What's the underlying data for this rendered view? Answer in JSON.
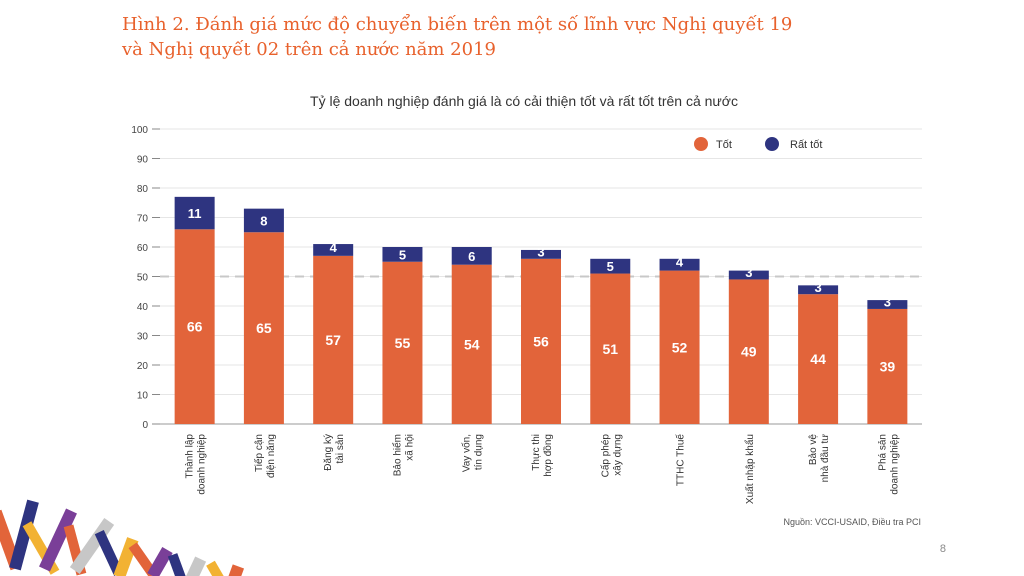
{
  "figure": {
    "title_line1": "Hình 2. Đánh giá mức độ chuyển biến trên một số lĩnh vực Nghị quyết 19",
    "title_line2": "và Nghị quyết 02 trên cả nước năm 2019",
    "page_number": "8"
  },
  "colors": {
    "tot": "#e2643a",
    "rat_tot": "#2e3480",
    "title": "#e8612c",
    "reference_line": "#c8c8c8"
  },
  "chart_data": {
    "type": "bar",
    "stacked": true,
    "title": "Tỷ lệ doanh nghiệp đánh giá là có cải thiện tốt và rất tốt trên cả nước",
    "xlabel": "",
    "ylabel": "",
    "ylim": [
      0,
      100
    ],
    "yticks": [
      0,
      10,
      20,
      30,
      40,
      50,
      60,
      70,
      80,
      90,
      100
    ],
    "grid": true,
    "reference_line": 50,
    "legend_position": "top-right",
    "categories": [
      [
        "Thành lập",
        "doanh nghiệp"
      ],
      [
        "Tiếp cận",
        "điện năng"
      ],
      [
        "Đăng ký",
        "tài sản"
      ],
      [
        "Bảo hiểm",
        "xã hội"
      ],
      [
        "Vay vốn,",
        "tín dụng"
      ],
      [
        "Thực thi",
        "hợp đồng"
      ],
      [
        "Cấp phép",
        "xây dựng"
      ],
      [
        "TTHC Thuế"
      ],
      [
        "Xuất nhập khẩu"
      ],
      [
        "Bảo vệ",
        "nhà đầu tư"
      ],
      [
        "Phá sản",
        "doanh nghiệp"
      ]
    ],
    "series": [
      {
        "name": "Tốt",
        "color": "#e2643a",
        "values": [
          66,
          65,
          57,
          55,
          54,
          56,
          51,
          52,
          49,
          44,
          39
        ]
      },
      {
        "name": "Rất tốt",
        "color": "#2e3480",
        "values": [
          11,
          8,
          4,
          5,
          6,
          3,
          5,
          4,
          3,
          3,
          3
        ]
      }
    ],
    "source": "Nguồn: VCCI-USAID, Điều tra PCI"
  }
}
